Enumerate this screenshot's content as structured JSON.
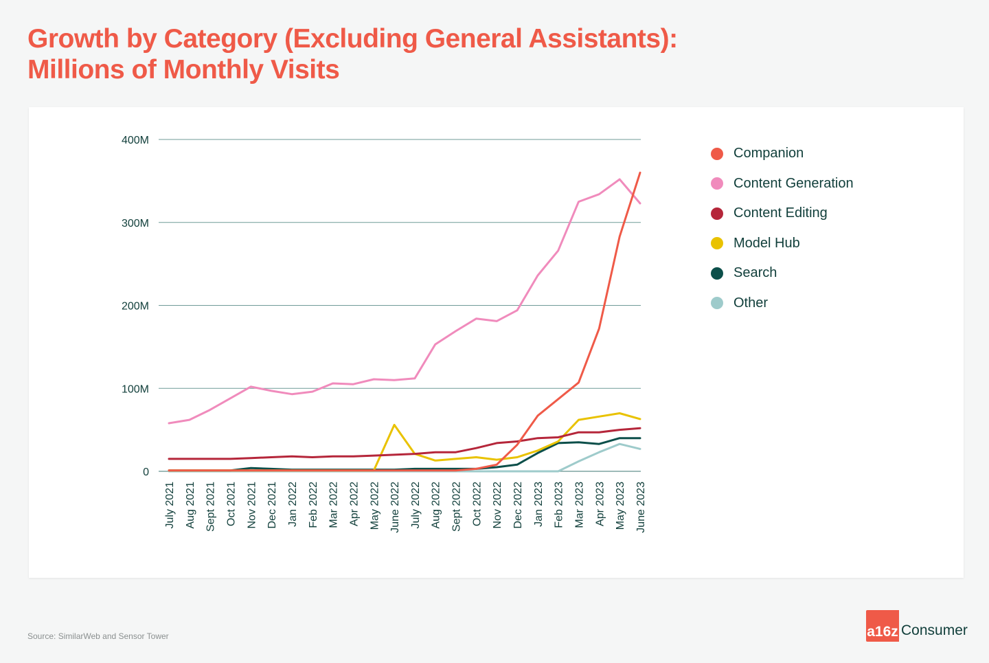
{
  "title_line1": "Growth by Category (Excluding General Assistants):",
  "title_line2": "Millions of Monthly Visits",
  "source": "Source: SimilarWeb and Sensor Tower",
  "brand": {
    "mark": "a16z",
    "text": "Consumer",
    "color": "#ef5a48"
  },
  "chart_data": {
    "type": "line",
    "title": "Growth by Category (Excluding General Assistants): Millions of Monthly Visits",
    "xlabel": "",
    "ylabel": "",
    "ylim": [
      0,
      400
    ],
    "yticks": [
      0,
      100,
      200,
      300,
      400
    ],
    "ytick_labels": [
      "0",
      "100M",
      "200M",
      "300M",
      "400M"
    ],
    "grid": true,
    "legend_position": "right",
    "categories": [
      "July 2021",
      "Aug 2021",
      "Sept 2021",
      "Oct 2021",
      "Nov 2021",
      "Dec 2021",
      "Jan 2022",
      "Feb 2022",
      "Mar 2022",
      "Apr 2022",
      "May 2022",
      "June 2022",
      "July 2022",
      "Aug 2022",
      "Sept 2022",
      "Oct 2022",
      "Nov 2022",
      "Dec 2022",
      "Jan 2023",
      "Feb 2023",
      "Mar 2023",
      "Apr 2023",
      "May 2023",
      "June 2023"
    ],
    "series": [
      {
        "name": "Companion",
        "color": "#ef5a48",
        "values": [
          1,
          1,
          1,
          1,
          1,
          1,
          1,
          1,
          1,
          1,
          1,
          1,
          1,
          1,
          1,
          3,
          8,
          32,
          67,
          87,
          107,
          172,
          283,
          360
        ]
      },
      {
        "name": "Content Generation",
        "color": "#f08bbc",
        "values": [
          58,
          62,
          74,
          88,
          102,
          97,
          93,
          96,
          106,
          105,
          111,
          110,
          112,
          153,
          169,
          184,
          181,
          194,
          236,
          266,
          325,
          334,
          352,
          323
        ]
      },
      {
        "name": "Content Editing",
        "color": "#b5263a",
        "values": [
          15,
          15,
          15,
          15,
          16,
          17,
          18,
          17,
          18,
          18,
          19,
          20,
          21,
          23,
          23,
          28,
          34,
          36,
          40,
          41,
          47,
          47,
          50,
          52
        ]
      },
      {
        "name": "Model Hub",
        "color": "#e9c200",
        "values": [
          1,
          1,
          1,
          1,
          1,
          1,
          1,
          1,
          1,
          1,
          1,
          56,
          21,
          13,
          15,
          17,
          14,
          17,
          25,
          36,
          62,
          66,
          70,
          63
        ]
      },
      {
        "name": "Search",
        "color": "#0c4f4a",
        "values": [
          1,
          1,
          1,
          1,
          4,
          3,
          2,
          2,
          2,
          2,
          2,
          2,
          3,
          3,
          3,
          3,
          5,
          8,
          22,
          34,
          35,
          33,
          40,
          40
        ]
      },
      {
        "name": "Other",
        "color": "#9ecbcb",
        "values": [
          0,
          0,
          0,
          0,
          0,
          0,
          0,
          0,
          0,
          0,
          0,
          0,
          0,
          0,
          0,
          0,
          0,
          0,
          0,
          0,
          12,
          23,
          33,
          27
        ]
      }
    ]
  }
}
